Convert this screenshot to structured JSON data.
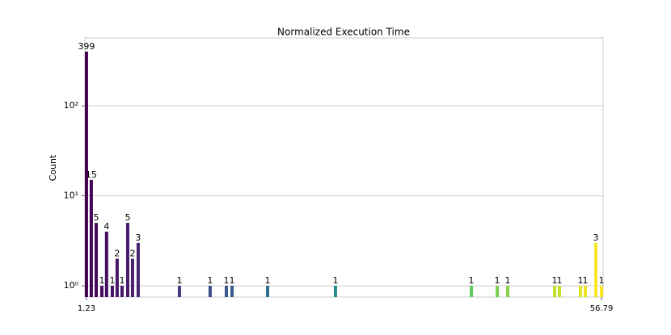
{
  "chart_data": {
    "type": "bar",
    "title": "Normalized Execution Time",
    "ylabel": "Count",
    "x": [
      1.23,
      1.75,
      2.28,
      2.89,
      3.4,
      4.02,
      4.54,
      5.07,
      5.68,
      6.2,
      6.81,
      11.26,
      14.57,
      16.32,
      16.93,
      20.77,
      28.09,
      42.75,
      45.54,
      46.67,
      51.73,
      52.25,
      54.52,
      55.04,
      56.18,
      56.79
    ],
    "values": [
      399,
      15,
      5,
      1,
      4,
      1,
      2,
      1,
      5,
      2,
      3,
      1,
      1,
      1,
      1,
      1,
      1,
      1,
      1,
      1,
      1,
      1,
      1,
      1,
      3,
      1
    ],
    "colormap": "viridis",
    "xlim": [
      1.06,
      56.96
    ],
    "xticks": [
      1.23,
      56.79
    ],
    "ylim": [
      0.75,
      566
    ],
    "yticks": [
      {
        "value": 1,
        "label": "10⁰"
      },
      {
        "value": 10,
        "label": "10¹"
      },
      {
        "value": 100,
        "label": "10²"
      }
    ],
    "log_y": true,
    "grid": true,
    "show_value_labels": true
  }
}
